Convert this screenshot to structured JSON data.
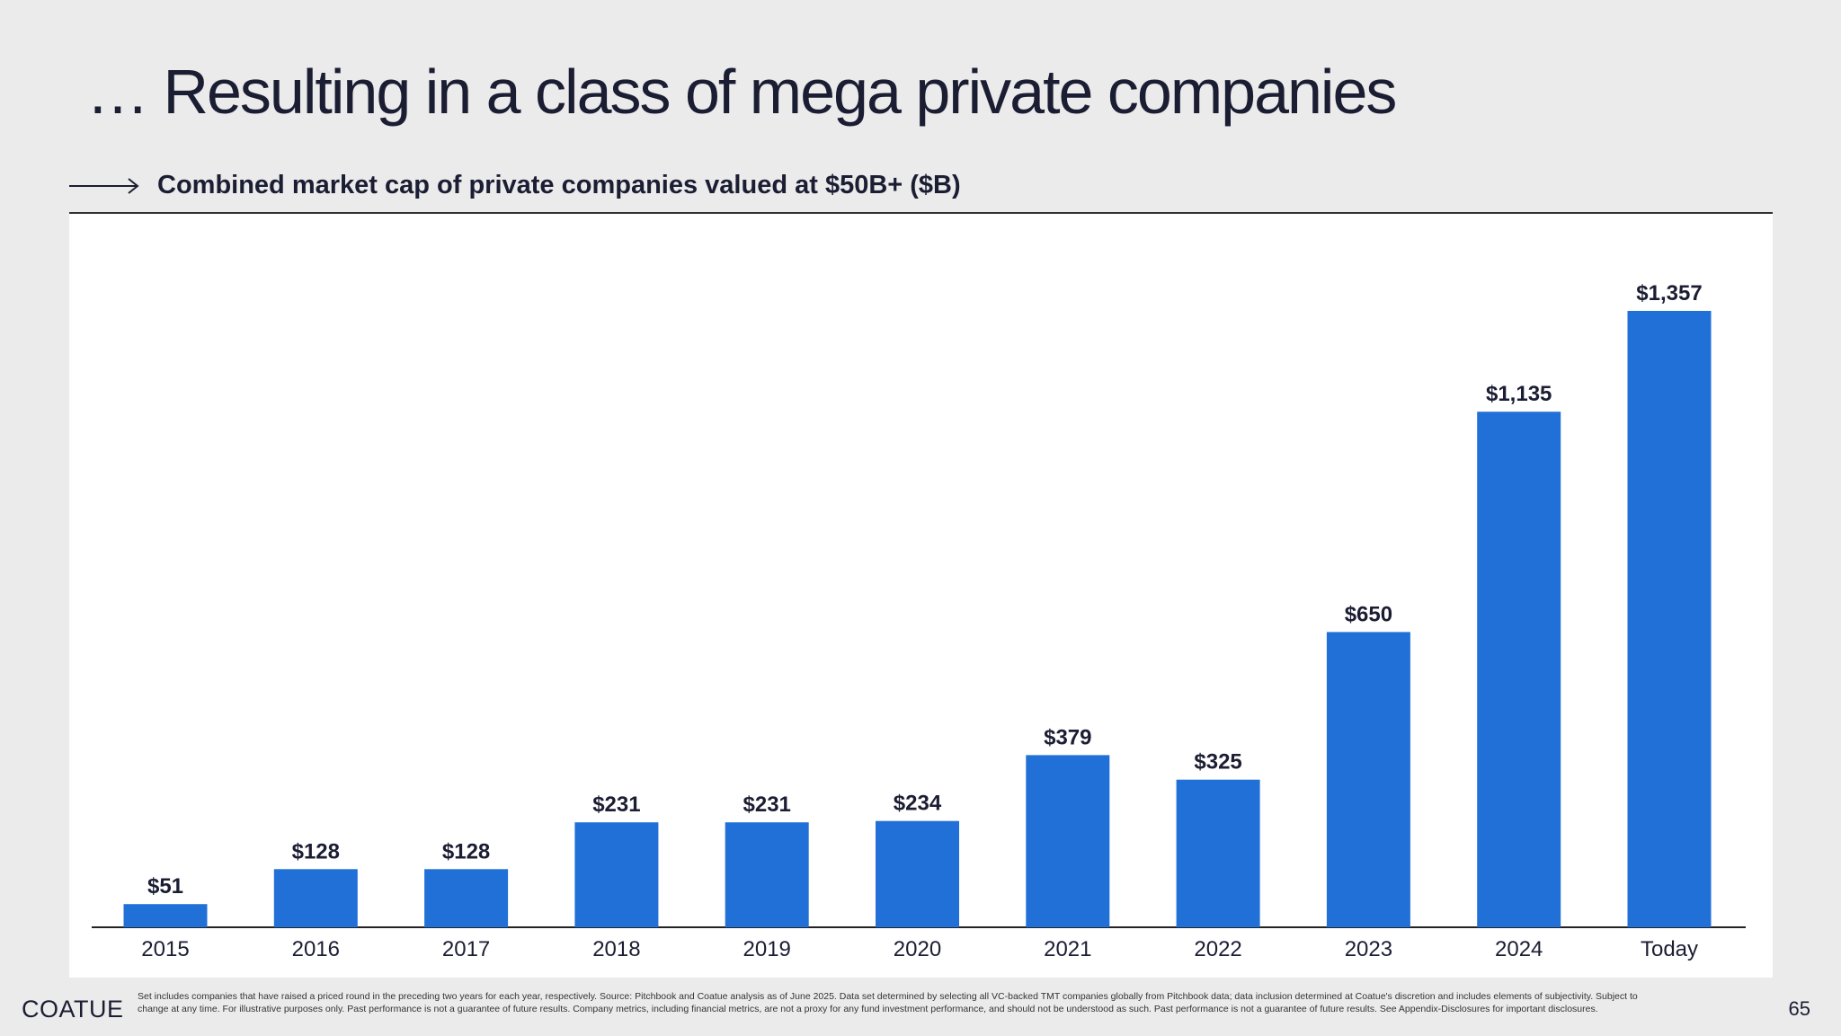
{
  "slide": {
    "title": "… Resulting in a class of mega private companies",
    "subtitle": "Combined market cap of private companies valued at $50B+ ($B)",
    "page_number": "65"
  },
  "footer": {
    "logo": "COATUE",
    "note": "Set includes companies that have raised a priced round in the preceding two years for each year, respectively. Source: Pitchbook and Coatue analysis as of June 2025. Data set determined by selecting all VC-backed TMT companies globally from Pitchbook data; data inclusion determined at Coatue's discretion and includes elements of subjectivity. Subject to change at any time. For illustrative purposes only. Past performance is not a guarantee of future results. Company metrics, including financial metrics, are not a proxy for any fund investment performance, and should not be understood as such. Past performance is not a guarantee of future results. See Appendix-Disclosures for important disclosures."
  },
  "icons": {
    "subtitle_marker": "arrow-right-icon"
  },
  "colors": {
    "bar": "#2070d8",
    "background": "#ebebeb",
    "panel": "#ffffff",
    "text": "#1b1e33"
  },
  "chart_data": {
    "type": "bar",
    "title": "Combined market cap of private companies valued at $50B+ ($B)",
    "xlabel": "",
    "ylabel": "",
    "categories": [
      "2015",
      "2016",
      "2017",
      "2018",
      "2019",
      "2020",
      "2021",
      "2022",
      "2023",
      "2024",
      "Today"
    ],
    "values": [
      51,
      128,
      128,
      231,
      231,
      234,
      379,
      325,
      650,
      1135,
      1357
    ],
    "value_labels": [
      "$51",
      "$128",
      "$128",
      "$231",
      "$231",
      "$234",
      "$379",
      "$325",
      "$650",
      "$1,135",
      "$1,357"
    ],
    "ylim": [
      0,
      1357
    ],
    "grid": false,
    "legend": "none"
  }
}
